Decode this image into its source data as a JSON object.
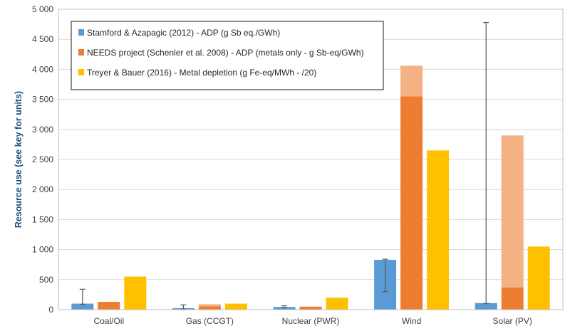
{
  "chart_data": {
    "type": "bar",
    "title": "",
    "xlabel": "",
    "ylabel": "Resource use (see key for units)",
    "ylim": [
      0,
      5000
    ],
    "yticks": [
      0,
      500,
      1000,
      1500,
      2000,
      2500,
      3000,
      3500,
      4000,
      4500,
      5000
    ],
    "ytick_labels": [
      "0",
      "500",
      "1 000",
      "1 500",
      "2 000",
      "2 500",
      "3 000",
      "3 500",
      "4 000",
      "4 500",
      "5 000"
    ],
    "grid": true,
    "legend_position": "top-left",
    "categories": [
      "Coal/Oil",
      "Gas (CCGT)",
      "Nuclear (PWR)",
      "Wind",
      "Solar (PV)"
    ],
    "series": [
      {
        "name": "Stamford & Azapagic (2012) - ADP (g Sb eq./GWh)",
        "color": "#5b9bd5",
        "values": [
          100,
          25,
          45,
          830,
          110
        ],
        "error_low": [
          90,
          10,
          35,
          300,
          100
        ],
        "error_high": [
          340,
          80,
          65,
          840,
          4780
        ]
      },
      {
        "name": "NEEDS project (Schenler et al. 2008) - ADP (metals only - g Sb-eq/GWh)",
        "color": "#ed7d31",
        "values": [
          130,
          55,
          50,
          3550,
          370
        ],
        "range_high": [
          130,
          90,
          50,
          4060,
          2900
        ],
        "range_color": "#f4b183"
      },
      {
        "name": "Treyer & Bauer (2016) - Metal depletion (g Fe-eq/MWh - /20)",
        "color": "#ffc000",
        "values": [
          550,
          100,
          200,
          2650,
          1050
        ]
      }
    ]
  }
}
